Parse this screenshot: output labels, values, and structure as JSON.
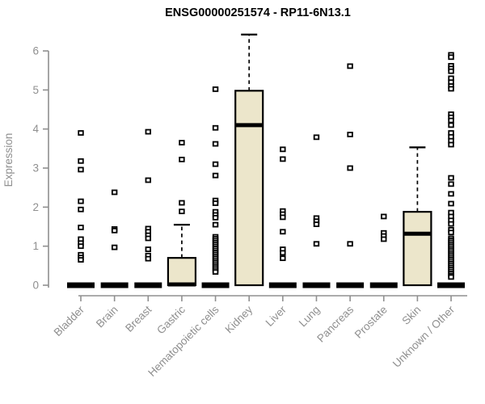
{
  "colors": {
    "box_fill": "#ECE6CB",
    "line": "#000000",
    "axis": "#8F8F8F",
    "title": "#000000",
    "background": "#FFFFFF"
  },
  "chart_data": {
    "type": "boxplot",
    "title": "ENSG00000251574 - RP11-6N13.1",
    "ylabel": "Expression",
    "xlabel": "",
    "ylim": [
      0,
      6.5
    ],
    "yticks": [
      0,
      1,
      2,
      3,
      4,
      5,
      6
    ],
    "grid": false,
    "legend": "none",
    "categories": [
      "Bladder",
      "Brain",
      "Breast",
      "Gastric",
      "Hematopoietic cells",
      "Kidney",
      "Liver",
      "Lung",
      "Pancreas",
      "Prostate",
      "Skin",
      "Unknown / Other"
    ],
    "boxes": [
      {
        "category": "Bladder",
        "q1": 0,
        "median": 0,
        "q3": 0,
        "whisker_low": 0,
        "whisker_high": 0,
        "collapsed": true,
        "outliers": [
          3.9,
          3.18,
          2.96,
          2.15,
          1.94,
          1.48,
          1.18,
          1.08,
          1.0,
          0.78,
          0.71,
          0.65
        ]
      },
      {
        "category": "Brain",
        "q1": 0,
        "median": 0,
        "q3": 0,
        "whisker_low": 0,
        "whisker_high": 0,
        "collapsed": true,
        "outliers": [
          2.38,
          1.44,
          1.4,
          0.97
        ]
      },
      {
        "category": "Breast",
        "q1": 0,
        "median": 0,
        "q3": 0,
        "whisker_low": 0,
        "whisker_high": 0,
        "collapsed": true,
        "outliers": [
          3.93,
          2.69,
          1.45,
          1.37,
          1.28,
          1.2,
          0.92,
          0.76,
          0.68
        ]
      },
      {
        "category": "Gastric",
        "q1": 0,
        "median": 0.02,
        "q3": 0.7,
        "whisker_low": 0,
        "whisker_high": 1.55,
        "collapsed": false,
        "outliers": [
          3.65,
          3.22,
          2.11,
          1.89
        ]
      },
      {
        "category": "Hematopoietic cells",
        "q1": 0,
        "median": 0,
        "q3": 0,
        "whisker_low": 0,
        "whisker_high": 0,
        "collapsed": true,
        "outliers": [
          5.02,
          4.03,
          3.62,
          3.1,
          2.81,
          2.17,
          2.1,
          1.88,
          1.8,
          1.73,
          1.55,
          1.24,
          1.19,
          1.14,
          1.09,
          1.04,
          0.99,
          0.94,
          0.89,
          0.84,
          0.79,
          0.74,
          0.69,
          0.64,
          0.59,
          0.54,
          0.49,
          0.44,
          0.39,
          0.34
        ]
      },
      {
        "category": "Kidney",
        "q1": 0,
        "median": 4.1,
        "q3": 4.98,
        "whisker_low": 0,
        "whisker_high": 6.42,
        "collapsed": false,
        "outliers": []
      },
      {
        "category": "Liver",
        "q1": 0,
        "median": 0,
        "q3": 0,
        "whisker_low": 0,
        "whisker_high": 0,
        "collapsed": true,
        "outliers": [
          3.48,
          3.23,
          1.9,
          1.82,
          1.74,
          1.37,
          0.92,
          0.83,
          0.69
        ]
      },
      {
        "category": "Lung",
        "q1": 0,
        "median": 0,
        "q3": 0,
        "whisker_low": 0,
        "whisker_high": 0,
        "collapsed": true,
        "outliers": [
          3.79,
          1.72,
          1.64,
          1.56,
          1.06
        ]
      },
      {
        "category": "Pancreas",
        "q1": 0,
        "median": 0,
        "q3": 0,
        "whisker_low": 0,
        "whisker_high": 0,
        "collapsed": true,
        "outliers": [
          5.61,
          3.86,
          3.0,
          1.06
        ]
      },
      {
        "category": "Prostate",
        "q1": 0,
        "median": 0,
        "q3": 0,
        "whisker_low": 0,
        "whisker_high": 0,
        "collapsed": true,
        "outliers": [
          1.76,
          1.34,
          1.26,
          1.18
        ]
      },
      {
        "category": "Skin",
        "q1": 0,
        "median": 1.32,
        "q3": 1.88,
        "whisker_low": 0,
        "whisker_high": 3.53,
        "collapsed": false,
        "outliers": []
      },
      {
        "category": "Unknown / Other",
        "q1": 0,
        "median": 0,
        "q3": 0,
        "whisker_low": 0,
        "whisker_high": 0,
        "collapsed": true,
        "outliers": [
          5.9,
          5.84,
          5.62,
          5.55,
          5.48,
          5.3,
          5.2,
          5.1,
          5.03,
          4.38,
          4.3,
          4.22,
          4.1,
          3.9,
          3.8,
          3.7,
          3.6,
          2.75,
          2.59,
          2.34,
          2.09,
          1.86,
          1.76,
          1.66,
          1.57,
          1.42,
          1.35,
          1.2,
          1.15,
          1.1,
          1.05,
          1.0,
          0.95,
          0.9,
          0.85,
          0.8,
          0.75,
          0.7,
          0.65,
          0.6,
          0.55,
          0.5,
          0.45,
          0.4,
          0.35,
          0.3,
          0.25,
          0.21
        ]
      }
    ]
  }
}
